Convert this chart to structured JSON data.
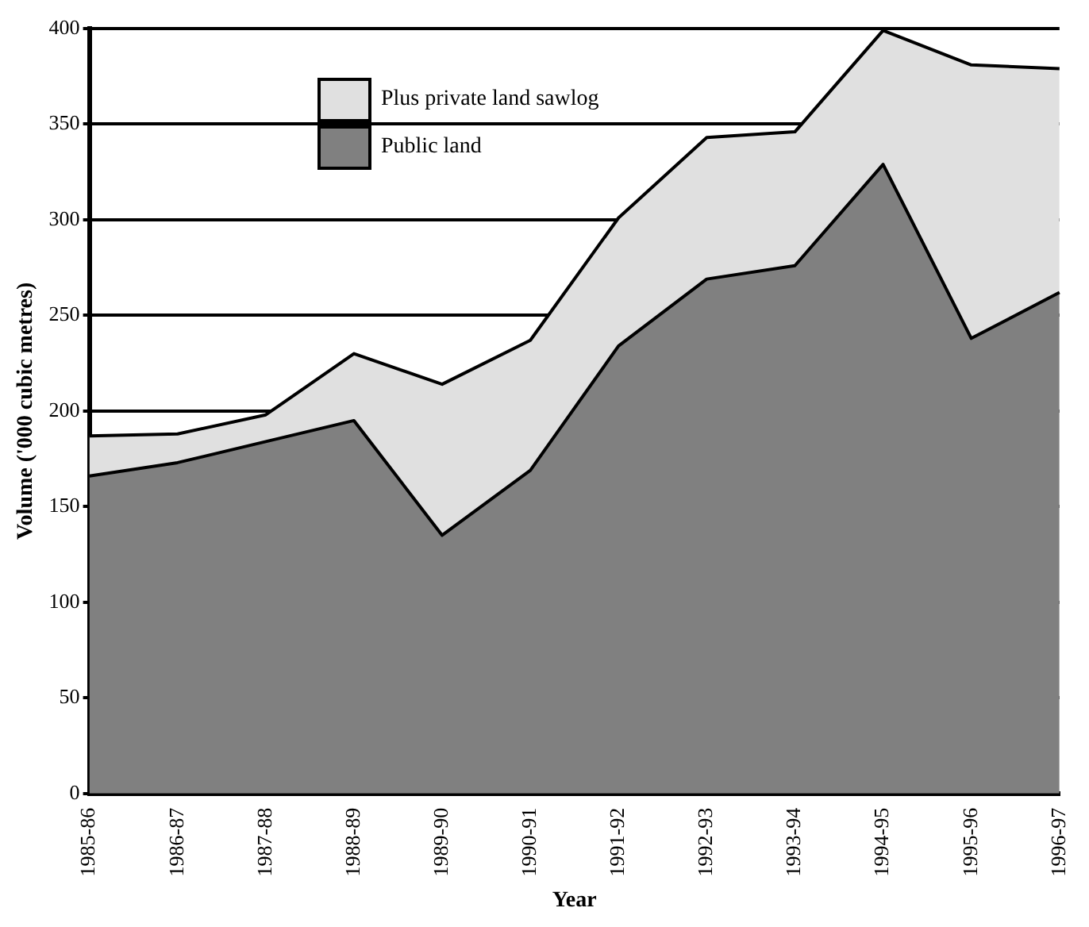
{
  "chart_data": {
    "type": "area",
    "stacked": true,
    "xlabel": "Year",
    "ylabel": "Volume ('000 cubic metres)",
    "categories": [
      "1985-86",
      "1986-87",
      "1987-88",
      "1988-89",
      "1989-90",
      "1990-91",
      "1991-92",
      "1992-93",
      "1993-94",
      "1994-95",
      "1995-96",
      "1996-97"
    ],
    "series": [
      {
        "name": "Public land",
        "color": "#808080",
        "values": [
          166,
          173,
          184,
          195,
          135,
          169,
          234,
          269,
          276,
          329,
          238,
          262
        ]
      },
      {
        "name": "Plus private land sawlog",
        "color": "#e0e0e0",
        "values": [
          21,
          15,
          14,
          35,
          79,
          68,
          67,
          74,
          70,
          70,
          143,
          117
        ]
      }
    ],
    "ylim": [
      0,
      400
    ],
    "yticks": [
      0,
      50,
      100,
      150,
      200,
      250,
      300,
      350,
      400
    ],
    "grid": "y",
    "legend": "top"
  }
}
